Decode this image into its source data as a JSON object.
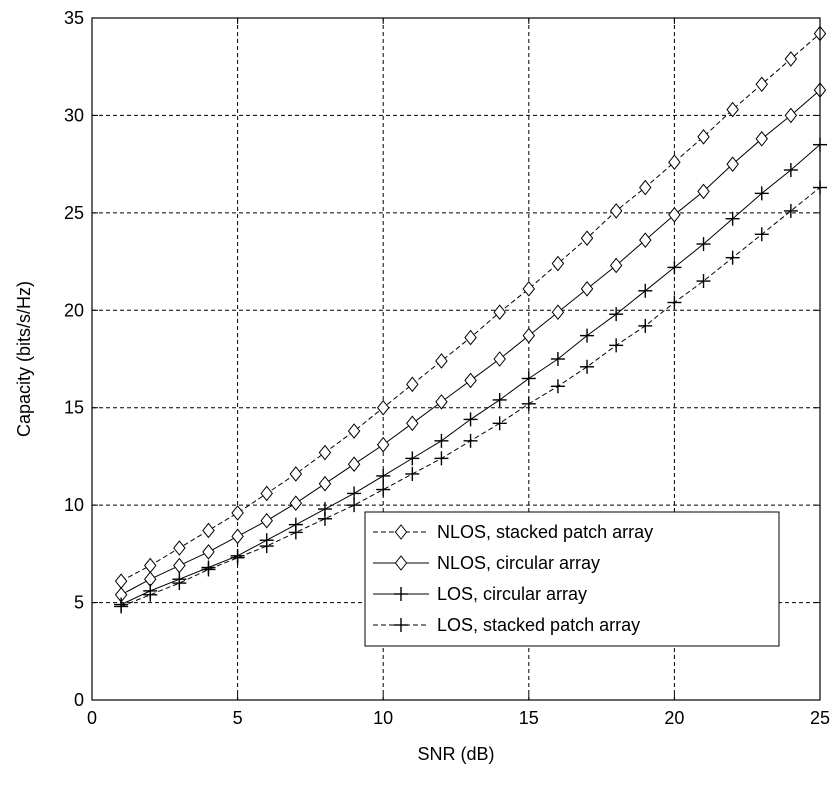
{
  "chart_data": {
    "type": "line",
    "title": "",
    "xlabel": "SNR (dB)",
    "ylabel": "Capacity (bits/s/Hz)",
    "xlim": [
      0,
      25
    ],
    "ylim": [
      0,
      35
    ],
    "xticks": [
      0,
      5,
      10,
      15,
      20,
      25
    ],
    "yticks": [
      0,
      5,
      10,
      15,
      20,
      25,
      30,
      35
    ],
    "grid": true,
    "legend_position": "lower-right",
    "x": [
      1,
      2,
      3,
      4,
      5,
      6,
      7,
      8,
      9,
      10,
      11,
      12,
      13,
      14,
      15,
      16,
      17,
      18,
      19,
      20,
      21,
      22,
      23,
      24,
      25
    ],
    "series": [
      {
        "name": "NLOS, stacked patch array",
        "marker": "diamond",
        "line_style": "dashed",
        "values": [
          6.1,
          6.9,
          7.8,
          8.7,
          9.6,
          10.6,
          11.6,
          12.7,
          13.8,
          15.0,
          16.2,
          17.4,
          18.6,
          19.9,
          21.1,
          22.4,
          23.7,
          25.1,
          26.3,
          27.6,
          28.9,
          30.3,
          31.6,
          32.9,
          34.2
        ]
      },
      {
        "name": "NLOS, circular array",
        "marker": "diamond",
        "line_style": "solid",
        "values": [
          5.4,
          6.2,
          6.9,
          7.6,
          8.4,
          9.2,
          10.1,
          11.1,
          12.1,
          13.1,
          14.2,
          15.3,
          16.4,
          17.5,
          18.7,
          19.9,
          21.1,
          22.3,
          23.6,
          24.9,
          26.1,
          27.5,
          28.8,
          30.0,
          31.3
        ]
      },
      {
        "name": "LOS, circular array",
        "marker": "plus",
        "line_style": "solid",
        "values": [
          4.9,
          5.6,
          6.2,
          6.8,
          7.4,
          8.2,
          9.0,
          9.8,
          10.6,
          11.5,
          12.4,
          13.3,
          14.4,
          15.4,
          16.5,
          17.5,
          18.7,
          19.8,
          21.0,
          22.2,
          23.4,
          24.7,
          26.0,
          27.2,
          28.5
        ]
      },
      {
        "name": "LOS, stacked patch array",
        "marker": "plus",
        "line_style": "dashed",
        "values": [
          4.8,
          5.4,
          6.0,
          6.7,
          7.3,
          7.9,
          8.6,
          9.3,
          10.0,
          10.8,
          11.6,
          12.4,
          13.3,
          14.2,
          15.2,
          16.1,
          17.1,
          18.2,
          19.2,
          20.4,
          21.5,
          22.7,
          23.9,
          25.1,
          26.3
        ]
      }
    ]
  }
}
